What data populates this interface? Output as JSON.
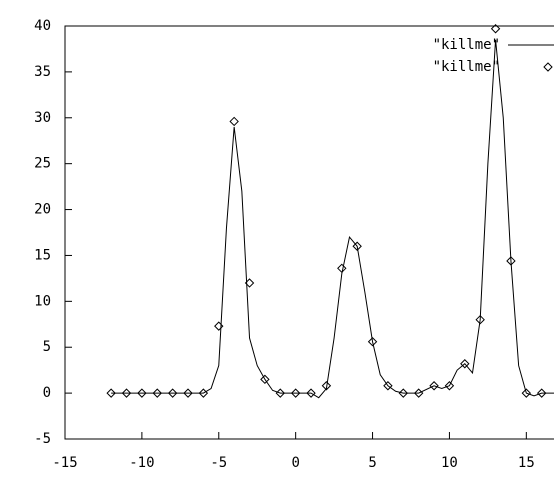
{
  "chart_data": {
    "type": "line",
    "xlim": [
      -15,
      16.8
    ],
    "ylim": [
      -5,
      40
    ],
    "xticks": [
      -15,
      -10,
      -5,
      0,
      5,
      10,
      15
    ],
    "yticks": [
      -5,
      0,
      5,
      10,
      15,
      20,
      25,
      30,
      35,
      40
    ],
    "legend": "top-right",
    "series": [
      {
        "name": "\"killme\"",
        "style": "line",
        "color": "#000000",
        "x": [
          -12,
          -11,
          -10,
          -9,
          -8,
          -7,
          -6,
          -5.5,
          -5,
          -4.5,
          -4,
          -3.5,
          -3,
          -2.5,
          -2,
          -1.5,
          -1,
          0,
          1,
          1.5,
          2,
          2.5,
          3,
          3.5,
          4,
          4.5,
          5,
          5.5,
          6,
          6.5,
          7,
          8,
          9,
          9.5,
          10,
          10.5,
          11,
          11.5,
          12,
          12.5,
          13,
          13.5,
          14,
          14.5,
          15,
          15.5,
          16,
          16.8
        ],
        "values": [
          0,
          0,
          0,
          0,
          0,
          0,
          0,
          0.5,
          3,
          18,
          29,
          22,
          6,
          3,
          1.5,
          0.3,
          0,
          0,
          0,
          -0.5,
          0.5,
          6,
          13,
          17,
          16,
          11,
          5.6,
          2,
          0.8,
          0.2,
          0,
          0,
          0.8,
          0.5,
          0.8,
          2.5,
          3.2,
          2.2,
          8,
          25,
          38.5,
          30,
          14.4,
          3,
          0,
          -0.3,
          0,
          0
        ]
      },
      {
        "name": "\"killme\"",
        "style": "points",
        "color": "#000000",
        "x": [
          -12,
          -11,
          -10,
          -9,
          -8,
          -7,
          -6,
          -5,
          -4,
          -3,
          -2,
          -1,
          0,
          1,
          2,
          3,
          4,
          5,
          6,
          7,
          8,
          9,
          10,
          11,
          12,
          13,
          14,
          15,
          16
        ],
        "values": [
          0,
          0,
          0,
          0,
          0,
          0,
          0,
          7.3,
          29.6,
          12,
          1.5,
          0,
          0,
          0,
          0.8,
          13.6,
          16,
          5.6,
          0.8,
          0,
          0,
          0.8,
          0.8,
          3.2,
          8,
          39.7,
          14.4,
          0,
          0
        ]
      }
    ]
  }
}
